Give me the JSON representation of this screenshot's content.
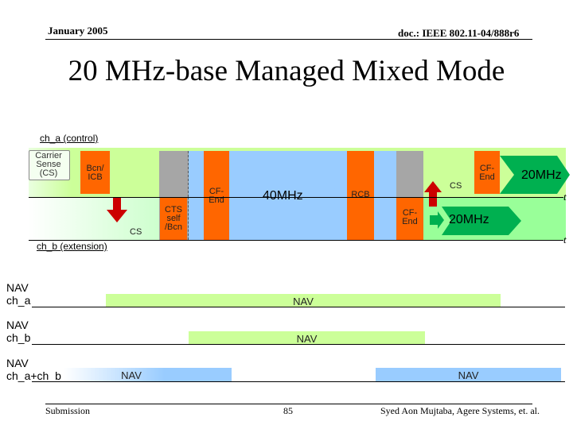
{
  "header": {
    "date": "January 2005",
    "doc_id": "doc.: IEEE 802.11-04/888r6"
  },
  "title": "20 MHz-base Managed Mixed Mode",
  "diagram": {
    "ch_a_label": "ch_a (control)",
    "ch_b_label": "ch_b (extension)",
    "carrier_sense": "Carrier Sense (CS)",
    "bcn_icb": "Bcn/ ICB",
    "cs_1": "CS",
    "cs_2": "CS",
    "cts_self_bcn": "CTS self /Bcn",
    "cf_end_1": "CF-End",
    "mhz40": "40MHz",
    "rcb": "RCB",
    "cf_end_2": "CF-End",
    "cf_end_3": "CF-End",
    "mhz20_top": "20MHz",
    "mhz20_bottom": "20MHz",
    "t_top": "t",
    "t_bottom": "t",
    "colors": {
      "ch_a_band": "#ccff99",
      "ch_b_band": "#99ff99",
      "gray_block": "#a6a6a6",
      "orange_block": "#ff6600",
      "blue_block": "#99ccff",
      "arrow_red": "#cc0000",
      "arrow_green": "#00b050"
    }
  },
  "nav": [
    {
      "label": "NAV ch_a",
      "bar": "NAV"
    },
    {
      "label": "NAV ch_b",
      "bar": "NAV"
    },
    {
      "label": "NAV ch_a+ch_b",
      "bar_left": "NAV",
      "bar_right": "NAV"
    }
  ],
  "footer": {
    "left": "Submission",
    "page": "85",
    "right": "Syed Aon Mujtaba, Agere Systems, et. al."
  }
}
